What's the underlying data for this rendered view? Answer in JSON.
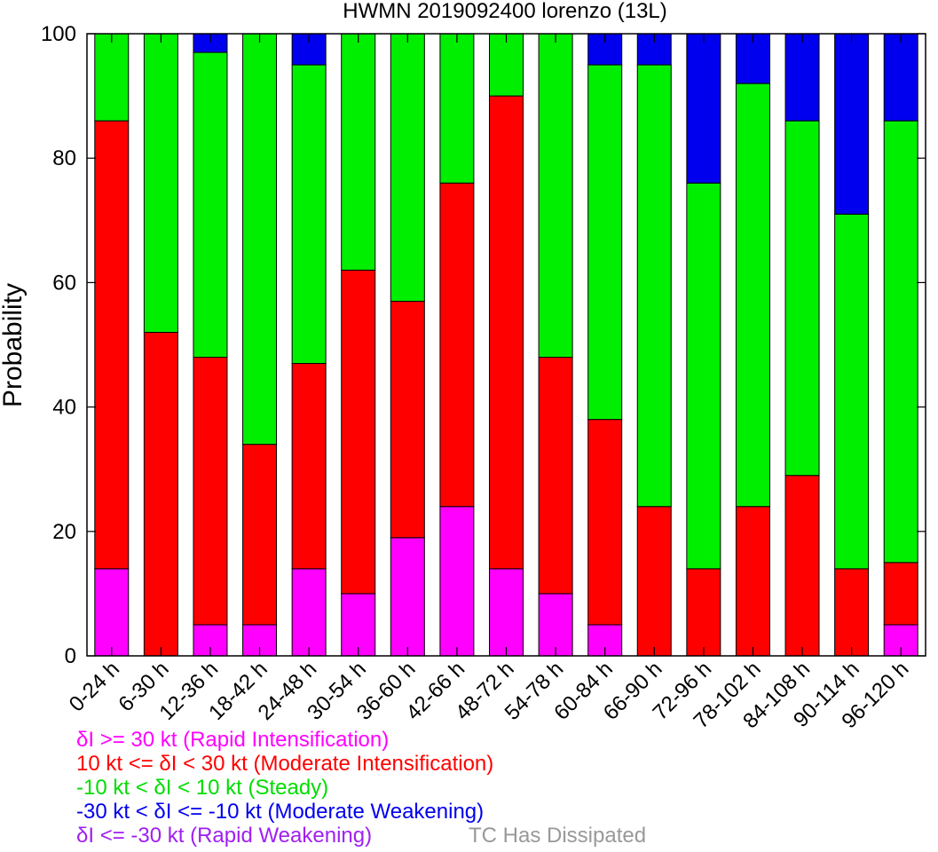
{
  "chart_data": {
    "type": "bar",
    "stacked": true,
    "title": "HWMN 2019092400 lorenzo (13L)",
    "xlabel": "",
    "ylabel": "Probability",
    "ylim": [
      0,
      100
    ],
    "yticks": [
      0,
      20,
      40,
      60,
      80,
      100
    ],
    "grid": false,
    "categories": [
      "0-24 h",
      "6-30 h",
      "12-36 h",
      "18-42 h",
      "24-48 h",
      "30-54 h",
      "36-60 h",
      "42-66 h",
      "48-72 h",
      "54-78 h",
      "60-84 h",
      "66-90 h",
      "72-96 h",
      "78-102 h",
      "84-108 h",
      "90-114 h",
      "96-120 h"
    ],
    "series": [
      {
        "name": "δI >= 30 kt (Rapid Intensification)",
        "color": "#ff00ff",
        "values": [
          14,
          0,
          5,
          5,
          14,
          10,
          19,
          24,
          14,
          10,
          5,
          0,
          0,
          0,
          0,
          0,
          5
        ]
      },
      {
        "name": "10 kt <= δI < 30 kt (Moderate Intensification)",
        "color": "#ff0000",
        "values": [
          72,
          52,
          43,
          29,
          33,
          52,
          38,
          52,
          76,
          38,
          33,
          24,
          14,
          24,
          29,
          14,
          10
        ]
      },
      {
        "name": "-10 kt < δI < 10 kt (Steady)",
        "color": "#00ee00",
        "values": [
          14,
          48,
          49,
          66,
          48,
          38,
          43,
          24,
          10,
          52,
          57,
          71,
          62,
          68,
          57,
          57,
          71
        ]
      },
      {
        "name": "-30 kt < δI <= -10 kt (Moderate Weakening)",
        "color": "#0000ee",
        "values": [
          0,
          0,
          3,
          0,
          5,
          0,
          0,
          0,
          0,
          0,
          5,
          5,
          24,
          8,
          14,
          29,
          14
        ]
      },
      {
        "name": "δI <= -30 kt (Rapid Weakening)",
        "color": "#a020f0",
        "values": [
          0,
          0,
          0,
          0,
          0,
          0,
          0,
          0,
          0,
          0,
          0,
          0,
          0,
          0,
          0,
          0,
          0
        ]
      }
    ],
    "legend_position": "bottom-left",
    "legend_labels": [
      {
        "text": "δI >= 30 kt (Rapid Intensification)",
        "color": "#ff00ff"
      },
      {
        "text": "10 kt <= δI < 30 kt (Moderate Intensification)",
        "color": "#ff0000"
      },
      {
        "text": "-10 kt < δI < 10 kt (Steady)",
        "color": "#00dd00"
      },
      {
        "text": "-30 kt < δI <= -10 kt (Moderate Weakening)",
        "color": "#0000ee"
      },
      {
        "text": "δI <= -30 kt (Rapid Weakening)",
        "color": "#a020f0"
      }
    ],
    "note": {
      "text": "TC Has Dissipated",
      "color": "#999999"
    }
  }
}
